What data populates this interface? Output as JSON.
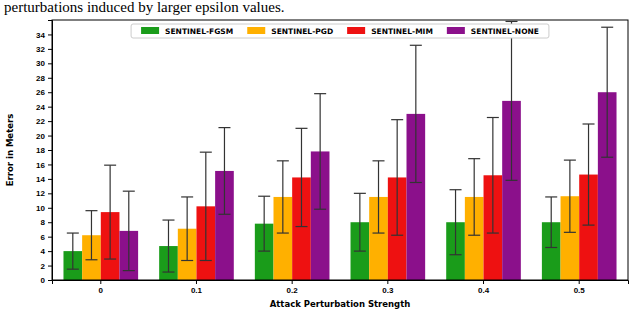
{
  "chart_data": {
    "type": "bar",
    "subtitle": "perturbations induced by larger epsilon values.",
    "x_label": "Attack Perturbation Strength",
    "y_label": "Error in Meters",
    "categories": [
      "0",
      "0.1",
      "0.2",
      "0.3",
      "0.4",
      "0.5"
    ],
    "series": [
      {
        "name": "SENTINEL-FGSM",
        "color": "#1a9c1a",
        "values": [
          4.0,
          4.7,
          7.8,
          8.0,
          8.0,
          8.0
        ],
        "errors": [
          2.5,
          3.6,
          3.8,
          4.0,
          4.5,
          3.5
        ]
      },
      {
        "name": "SENTINEL-PGD",
        "color": "#ffb000",
        "values": [
          6.2,
          7.1,
          11.5,
          11.5,
          11.5,
          11.6
        ],
        "errors": [
          3.4,
          4.4,
          5.0,
          5.0,
          5.3,
          5.0
        ]
      },
      {
        "name": "SENTINEL-MIM",
        "color": "#ee1111",
        "values": [
          9.4,
          10.2,
          14.2,
          14.2,
          14.5,
          14.6
        ],
        "errors": [
          6.5,
          7.5,
          6.8,
          8.0,
          8.0,
          7.0
        ]
      },
      {
        "name": "SENTINEL-NONE",
        "color": "#8b108b",
        "values": [
          6.8,
          15.1,
          17.8,
          23.0,
          24.8,
          26.0
        ],
        "errors": [
          5.5,
          6.0,
          8.0,
          9.5,
          11.0,
          9.0
        ]
      }
    ],
    "ylim": [
      0,
      36
    ],
    "yticks": [
      0,
      2,
      4,
      6,
      8,
      10,
      12,
      14,
      16,
      18,
      20,
      22,
      24,
      26,
      28,
      30,
      32,
      34
    ],
    "legend": "top",
    "grid": false
  }
}
